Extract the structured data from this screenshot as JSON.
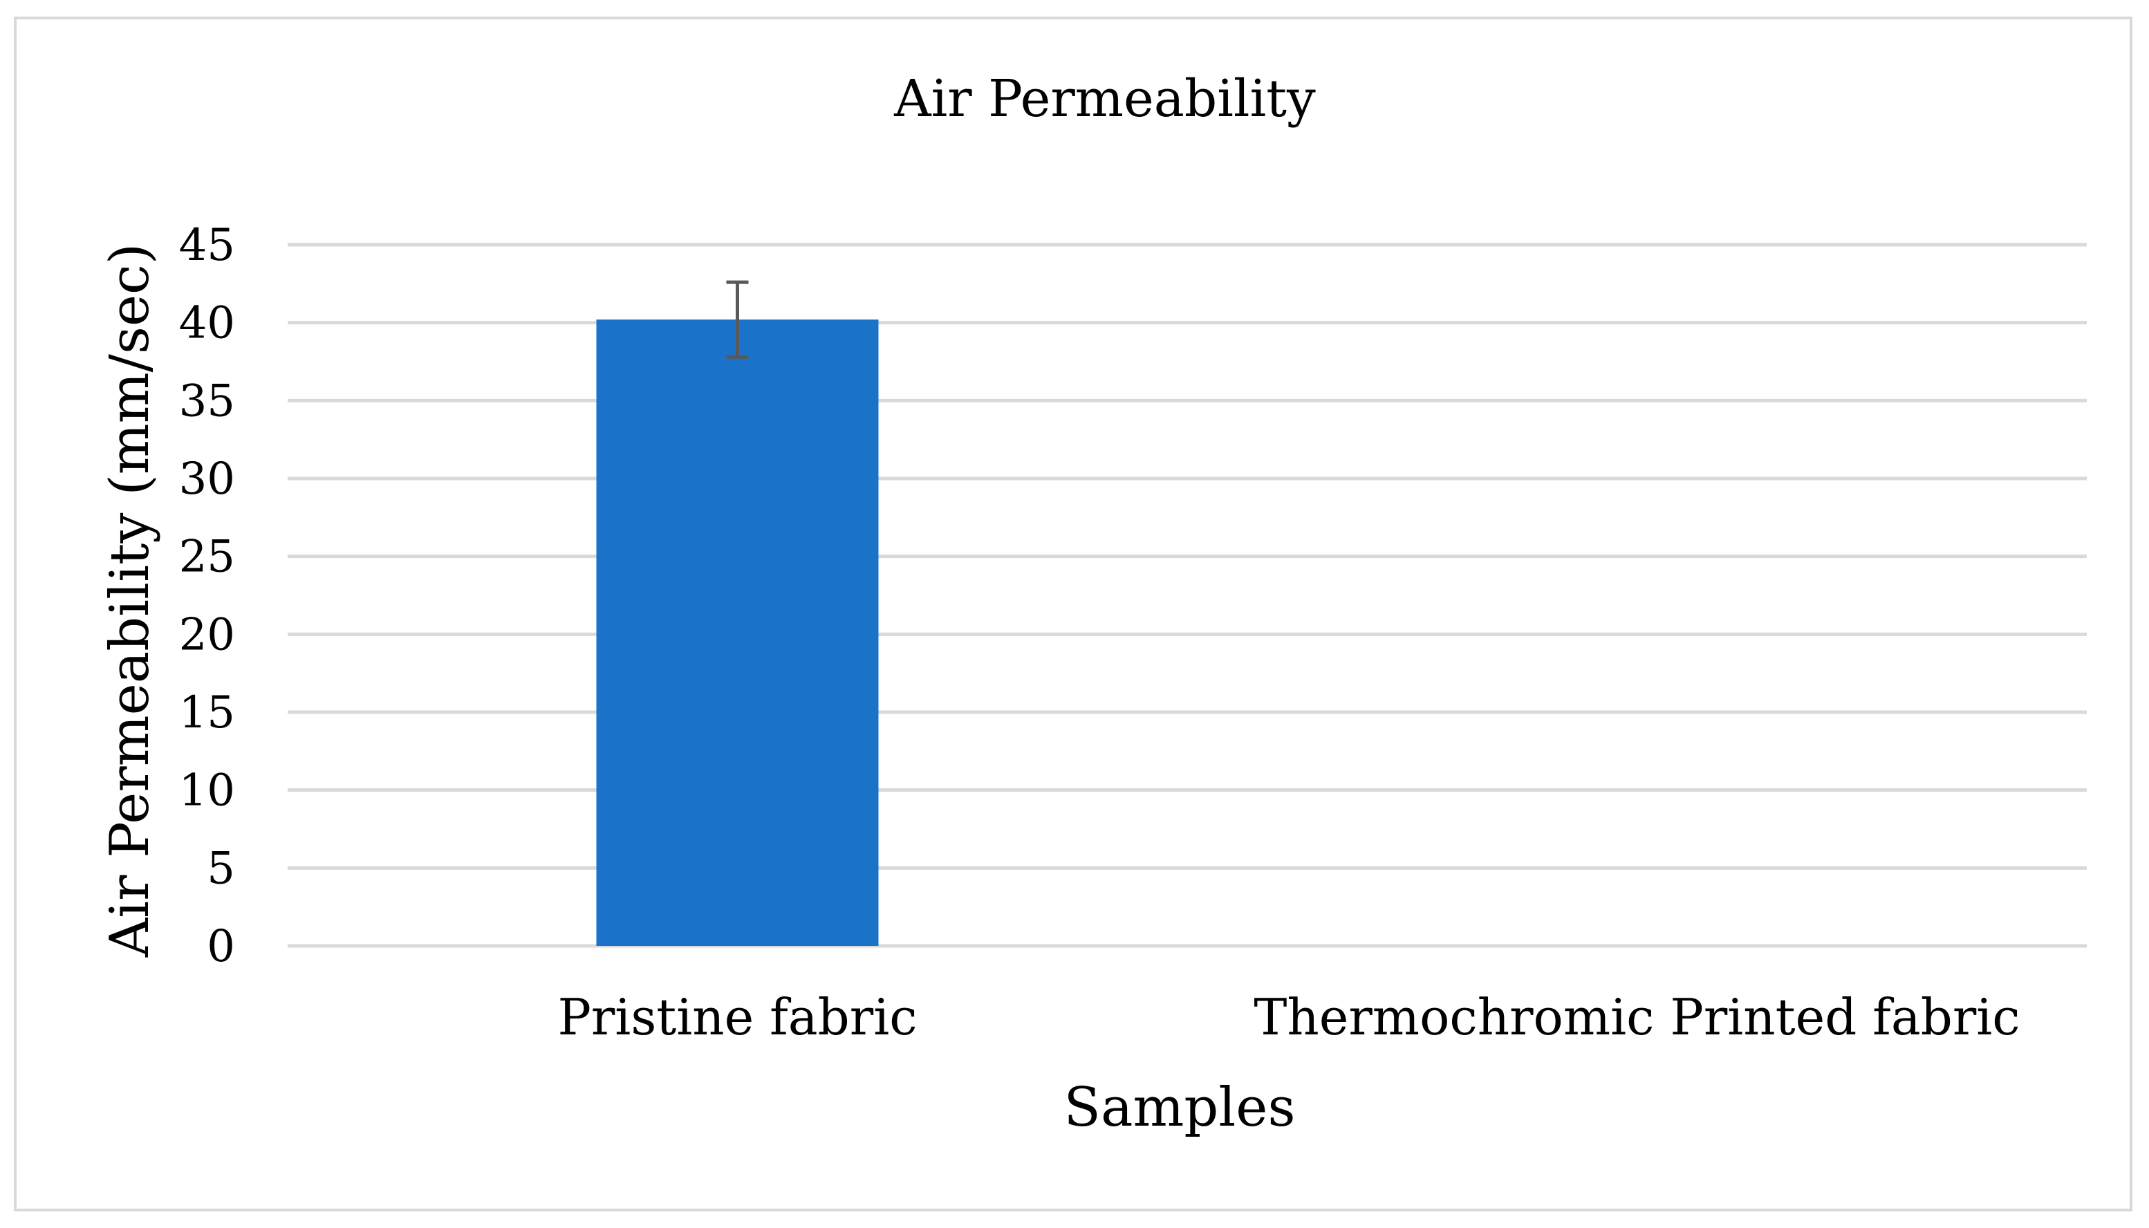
{
  "chart_data": {
    "type": "bar",
    "title": "Air Permeability",
    "xlabel": "Samples",
    "ylabel": "Air Permeability (mm/sec)",
    "categories": [
      "Pristine fabric",
      "Thermochromic Printed fabric"
    ],
    "values": [
      40.2,
      null
    ],
    "error": [
      2.4,
      null
    ],
    "ylim": [
      0,
      45
    ],
    "yticks": [
      "0",
      "5",
      "10",
      "15",
      "20",
      "25",
      "30",
      "35",
      "40",
      "45"
    ],
    "grid": true,
    "bar_color": "#1a73c8",
    "error_color": "#595959",
    "grid_color": "#d9d9d9"
  }
}
